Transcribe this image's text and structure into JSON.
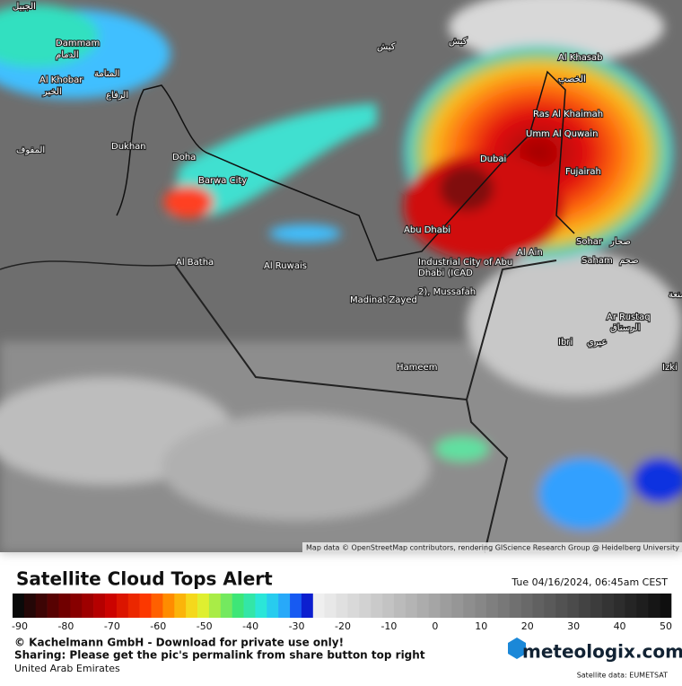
{
  "map": {
    "labels": [
      "Dammam",
      "الدمام",
      "Al Khobar",
      "الخبر",
      "المنامة",
      "الرفاع",
      "Dukhan",
      "Doha",
      "Barwa City",
      "Al Batha",
      "Al Ruwais",
      "Madinat Zayed",
      "Hameem",
      "Abu Dhabi",
      "Industrial City of Abu",
      "Dhabi (ICAD",
      "2), Mussafah",
      "Al Ain",
      "Dubai",
      "Umm Al Quwain",
      "Ras Al Khaimah",
      "Al Khasab",
      "الخصب",
      "Fujairah",
      "Sohar",
      "صحار",
      "Saham",
      "صحم",
      "Ar Rustaq",
      "الرستاق",
      "Ibri",
      "عبري",
      "Izki",
      "مصنعة",
      "كيش",
      "كيش",
      "المفوف",
      "الجبيل"
    ],
    "attribution": "Map data © OpenStreetMap contributors, rendering GIScience Research Group @ Heidelberg University"
  },
  "legend": {
    "title": "Satellite Cloud Tops Alert",
    "timestamp": "Tue 04/16/2024, 06:45am CEST",
    "min": -90,
    "max": 50,
    "ticks": [
      -90,
      -80,
      -70,
      -60,
      -50,
      -40,
      -30,
      -20,
      -10,
      0,
      10,
      20,
      30,
      40,
      50
    ]
  },
  "footer": {
    "copyright": "© Kachelmann GmbH - Download for private use only!",
    "sharing": "Sharing: Please get the pic's permalink from share button top right",
    "region": "United Arab Emirates",
    "logo": "meteologix.com",
    "source": "Satellite data: EUMETSAT"
  }
}
